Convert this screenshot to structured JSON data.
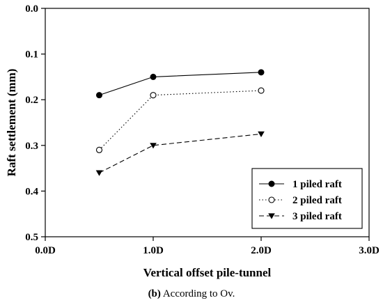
{
  "chart_data": {
    "type": "line",
    "title": "",
    "xlabel": "Vertical offset pile-tunnel",
    "ylabel": "Raft settlement (mm)",
    "x_categories": [
      "0.0D",
      "1.0D",
      "2.0D",
      "3.0D"
    ],
    "x_positions": [
      0,
      1,
      2,
      3
    ],
    "xlim": [
      0,
      3
    ],
    "ylim": [
      0,
      0.5
    ],
    "y_inverted": true,
    "y_ticks": [
      "0.0",
      "0.1",
      "0.2",
      "0.3",
      "0.4",
      "0.5"
    ],
    "y_tick_values": [
      0,
      0.1,
      0.2,
      0.3,
      0.4,
      0.5
    ],
    "grid": false,
    "legend_position": "bottom-right",
    "series": [
      {
        "name": "1 piled raft",
        "marker": "filled-circle",
        "line_style": "solid",
        "x": [
          0.5,
          1.0,
          2.0
        ],
        "y": [
          0.19,
          0.15,
          0.14
        ]
      },
      {
        "name": "2 piled raft",
        "marker": "open-circle",
        "line_style": "dotted",
        "x": [
          0.5,
          1.0,
          2.0
        ],
        "y": [
          0.31,
          0.19,
          0.18
        ]
      },
      {
        "name": "3 piled raft",
        "marker": "filled-triangle-down",
        "line_style": "dashed",
        "x": [
          0.5,
          1.0,
          2.0
        ],
        "y": [
          0.36,
          0.3,
          0.275
        ]
      }
    ]
  },
  "caption": {
    "label": "(b)",
    "text": " According to Ov."
  }
}
